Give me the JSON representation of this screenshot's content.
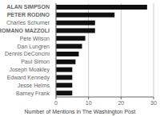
{
  "chart_data": {
    "type": "bar",
    "orientation": "horizontal",
    "categories": [
      "Barney Frank",
      "Jesse Helms",
      "Edward Kennedy",
      "Joseph Moakley",
      "Paul Simon",
      "Dennis DeConcini",
      "Dan Lungren",
      "Pete Wilson",
      "ROMANO MAZZOLI",
      "Charles Schumer",
      "PETER RODINO",
      "ALAN SIMPSON"
    ],
    "values": [
      5,
      5,
      5,
      5,
      6,
      7,
      8,
      9,
      12,
      12,
      18,
      28
    ],
    "color": "#111111",
    "xlabel": "Number of Mentions in The Washington Post",
    "xlim": [
      0,
      30
    ],
    "xticks": [
      0,
      10,
      20,
      30
    ],
    "grid": true
  }
}
